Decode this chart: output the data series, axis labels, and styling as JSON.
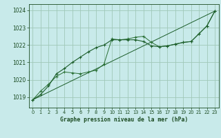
{
  "title": "Graphe pression niveau de la mer (hPa)",
  "background_color": "#c8eaea",
  "grid_color": "#a0c8b8",
  "line_color1": "#1a5c28",
  "line_color2": "#2a7035",
  "xlim": [
    -0.5,
    23.5
  ],
  "ylim": [
    1018.4,
    1024.35
  ],
  "yticks": [
    1019,
    1020,
    1021,
    1022,
    1023,
    1024
  ],
  "xticks": [
    0,
    1,
    2,
    3,
    4,
    5,
    6,
    7,
    8,
    9,
    10,
    11,
    12,
    13,
    14,
    15,
    16,
    17,
    18,
    19,
    20,
    21,
    22,
    23
  ],
  "series1_x": [
    0,
    1,
    2,
    3,
    4,
    5,
    6,
    7,
    8,
    9,
    10,
    11,
    12,
    13,
    14,
    15,
    16,
    17,
    18,
    19,
    20,
    21,
    22,
    23
  ],
  "series1_y": [
    1018.85,
    1019.15,
    1019.65,
    1020.35,
    1020.65,
    1021.0,
    1021.3,
    1021.6,
    1021.85,
    1022.0,
    1022.3,
    1022.3,
    1022.3,
    1022.3,
    1022.2,
    1021.95,
    1021.9,
    1021.95,
    1022.05,
    1022.15,
    1022.2,
    1022.65,
    1023.1,
    1023.95
  ],
  "series2_x": [
    0,
    1,
    2,
    3,
    4,
    5,
    6,
    7,
    8,
    9,
    10,
    11,
    12,
    13,
    14,
    15,
    16,
    17,
    18,
    19,
    20,
    21,
    22,
    23
  ],
  "series2_y": [
    1018.85,
    1019.35,
    1019.75,
    1020.2,
    1020.45,
    1020.4,
    1020.35,
    1020.45,
    1020.55,
    1020.9,
    1022.35,
    1022.3,
    1022.35,
    1022.45,
    1022.5,
    1022.15,
    1021.9,
    1021.95,
    1022.05,
    1022.15,
    1022.2,
    1022.65,
    1023.1,
    1023.95
  ],
  "series3_x": [
    0,
    23
  ],
  "series3_y": [
    1018.85,
    1023.95
  ],
  "marker1_x": [
    0,
    1,
    2,
    3,
    4,
    5,
    6,
    7,
    8,
    9,
    10,
    11,
    12,
    13,
    14,
    15,
    16,
    17,
    18,
    19,
    20,
    21,
    22,
    23
  ],
  "marker1_y": [
    1018.85,
    1019.15,
    1019.65,
    1020.35,
    1020.65,
    1021.0,
    1021.3,
    1021.6,
    1021.85,
    1022.0,
    1022.3,
    1022.3,
    1022.3,
    1022.3,
    1022.2,
    1021.95,
    1021.9,
    1021.95,
    1022.05,
    1022.15,
    1022.2,
    1022.65,
    1023.1,
    1023.95
  ],
  "marker2_x": [
    0,
    1,
    2,
    3,
    4,
    5,
    6,
    7,
    8,
    9,
    10,
    11,
    12,
    13,
    14,
    15,
    16,
    17,
    18,
    19,
    20,
    21,
    22,
    23
  ],
  "marker2_y": [
    1018.85,
    1019.35,
    1019.75,
    1020.2,
    1020.45,
    1020.4,
    1020.35,
    1020.45,
    1020.55,
    1020.9,
    1022.35,
    1022.3,
    1022.35,
    1022.45,
    1022.5,
    1022.15,
    1021.9,
    1021.95,
    1022.05,
    1022.15,
    1022.2,
    1022.65,
    1023.1,
    1023.95
  ]
}
